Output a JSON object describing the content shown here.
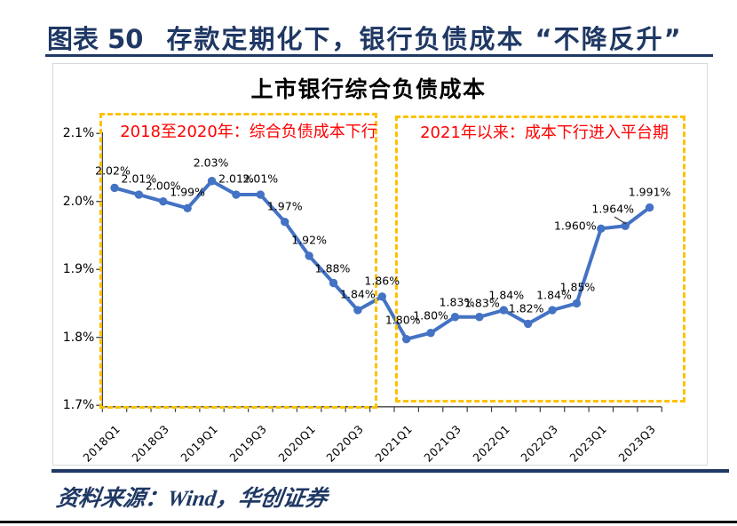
{
  "page": {
    "figure_label": "图表 50",
    "figure_title": "存款定期化下，银行负债成本 “不降反升”",
    "source_text": "资料来源：Wind，华创证券"
  },
  "colors": {
    "navy": "#1F3864",
    "line_blue": "#4472C4",
    "box_orange": "#FFC000",
    "annotation_red": "#FF0000"
  },
  "chart_data": {
    "type": "line",
    "title": "上市银行综合负债成本",
    "x": [
      "2018Q1",
      "2018Q2",
      "2018Q3",
      "2018Q4",
      "2019Q1",
      "2019Q2",
      "2019Q3",
      "2019Q4",
      "2020Q1",
      "2020Q2",
      "2020Q3",
      "2020Q4",
      "2021Q1",
      "2021Q2",
      "2021Q3",
      "2021Q4",
      "2022Q1",
      "2022Q2",
      "2022Q3",
      "2022Q4",
      "2023Q1",
      "2023Q2",
      "2023Q3"
    ],
    "x_tick_labels": [
      "2018Q1",
      "2018Q3",
      "2019Q1",
      "2019Q3",
      "2020Q1",
      "2020Q3",
      "2021Q1",
      "2021Q3",
      "2022Q1",
      "2022Q3",
      "2023Q1",
      "2023Q3"
    ],
    "series": [
      {
        "values": [
          2.02,
          2.01,
          2.0,
          1.99,
          2.03,
          2.01,
          2.01,
          1.97,
          1.92,
          1.88,
          1.84,
          1.86,
          1.8,
          1.8,
          1.83,
          1.83,
          1.84,
          1.82,
          1.84,
          1.85,
          1.96,
          1.964,
          1.991
        ],
        "labels": [
          "2.02%",
          "2.01%",
          "2.00%",
          "1.99%",
          "2.03%",
          "2.01%",
          "2.01%",
          "1.97%",
          "1.92%",
          "1.88%",
          "1.84%",
          "1.86%",
          "1.80%",
          "1.80%",
          "1.83%",
          "1.83%",
          "1.84%",
          "1.82%",
          "1.84%",
          "1.85%",
          "1.960%",
          "1.964%",
          "1.991%"
        ]
      }
    ],
    "ylim": [
      1.7,
      2.1
    ],
    "y_ticks": [
      {
        "value": 1.7,
        "label": "1.7%"
      },
      {
        "value": 1.8,
        "label": "1.8%"
      },
      {
        "value": 1.9,
        "label": "1.9%"
      },
      {
        "value": 2.0,
        "label": "2.0%"
      },
      {
        "value": 2.1,
        "label": "2.1%"
      }
    ],
    "annotations": [
      {
        "text": "2018至2020年：综合负债成本下行",
        "color": "#FF0000"
      },
      {
        "text": "2021年以来：成本下行进入平台期",
        "color": "#FF0000"
      }
    ],
    "line_color": "#4472C4",
    "box_color": "#FFC000",
    "grid": false,
    "legend": false
  }
}
